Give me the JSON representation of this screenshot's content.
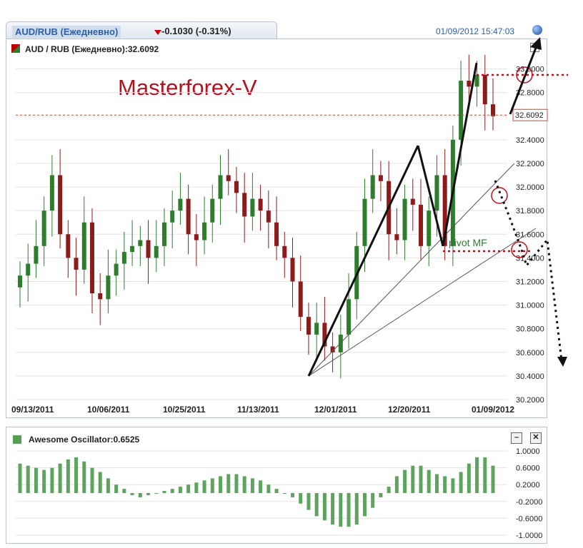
{
  "header": {
    "tab_title": "AUD/RUB (Ежедневно)",
    "change": "-0.1030 (-0.31%)",
    "datetime": "01/09/2012 15:47:03"
  },
  "main": {
    "legend": "AUD / RUB (Ежедневно):32.6092",
    "brand": "Masterforex-V",
    "price_label": "32.6092",
    "annotation": "pivot MF"
  },
  "oscillator": {
    "legend": "Awesome Oscillator:0.6525",
    "minimize_label": "–",
    "close_label": "✕"
  },
  "colors": {
    "up": "#2d7d2d",
    "down": "#8e1b1b",
    "osc": "#5ea35e",
    "accent": "#b3121c"
  },
  "chart_data": [
    {
      "type": "candlestick",
      "ylim": [
        30.2,
        33.1
      ],
      "yticks": [
        "30.2000",
        "30.4000",
        "30.6000",
        "30.8000",
        "31.0000",
        "31.2000",
        "31.4000",
        "31.6000",
        "31.8000",
        "32.0000",
        "32.2000",
        "32.4000",
        "32.6000",
        "32.8000",
        "33.0000"
      ],
      "xticks": [
        "09/13/2011",
        "10/06/2011",
        "10/25/2011",
        "11/13/2011",
        "12/01/2011",
        "12/20/2011",
        "01/09/2012"
      ],
      "last_price": 32.6092,
      "close": [
        31.25,
        31.35,
        31.5,
        31.8,
        32.1,
        31.6,
        31.4,
        31.3,
        31.7,
        31.1,
        31.05,
        31.25,
        31.35,
        31.45,
        31.5,
        31.55,
        31.4,
        31.5,
        31.7,
        31.8,
        31.9,
        31.6,
        31.55,
        31.7,
        31.9,
        32.1,
        32.05,
        31.95,
        31.75,
        31.9,
        31.8,
        31.7,
        31.5,
        31.4,
        31.2,
        30.9,
        30.75,
        30.85,
        30.65,
        30.6,
        30.75,
        31.05,
        31.5,
        31.9,
        32.1,
        32.05,
        31.6,
        31.55,
        31.9,
        31.85,
        31.5,
        31.8,
        32.1,
        31.5,
        32.4,
        32.9,
        32.85,
        32.95,
        32.7,
        32.6
      ],
      "waves": [
        {
          "from": [
            "11/30/2011",
            30.4
          ],
          "to": [
            "12/18/2011",
            32.35
          ]
        },
        {
          "from": [
            "12/18/2011",
            32.35
          ],
          "to": [
            "12/23/2011",
            31.5
          ]
        },
        {
          "from": [
            "12/23/2011",
            31.5
          ],
          "to": [
            "01/06/2012",
            33.05
          ]
        }
      ]
    },
    {
      "type": "bar",
      "name": "Awesome Oscillator",
      "ylim": [
        -1.0,
        1.0
      ],
      "yticks": [
        "1.0000",
        "0.6000",
        "0.2000",
        "-0.2000",
        "-0.6000",
        "-1.0000"
      ],
      "values": [
        0.7,
        0.65,
        0.6,
        0.55,
        0.6,
        0.7,
        0.8,
        0.85,
        0.75,
        0.6,
        0.5,
        0.35,
        0.2,
        0.1,
        -0.05,
        -0.1,
        -0.05,
        0.0,
        0.05,
        0.1,
        0.15,
        0.2,
        0.25,
        0.3,
        0.35,
        0.4,
        0.45,
        0.45,
        0.4,
        0.35,
        0.3,
        0.2,
        0.1,
        0.0,
        -0.1,
        -0.25,
        -0.4,
        -0.55,
        -0.65,
        -0.75,
        -0.8,
        -0.8,
        -0.75,
        -0.55,
        -0.35,
        -0.1,
        0.15,
        0.4,
        0.55,
        0.65,
        0.65,
        0.55,
        0.45,
        0.4,
        0.35,
        0.5,
        0.7,
        0.85,
        0.85,
        0.65
      ]
    }
  ]
}
